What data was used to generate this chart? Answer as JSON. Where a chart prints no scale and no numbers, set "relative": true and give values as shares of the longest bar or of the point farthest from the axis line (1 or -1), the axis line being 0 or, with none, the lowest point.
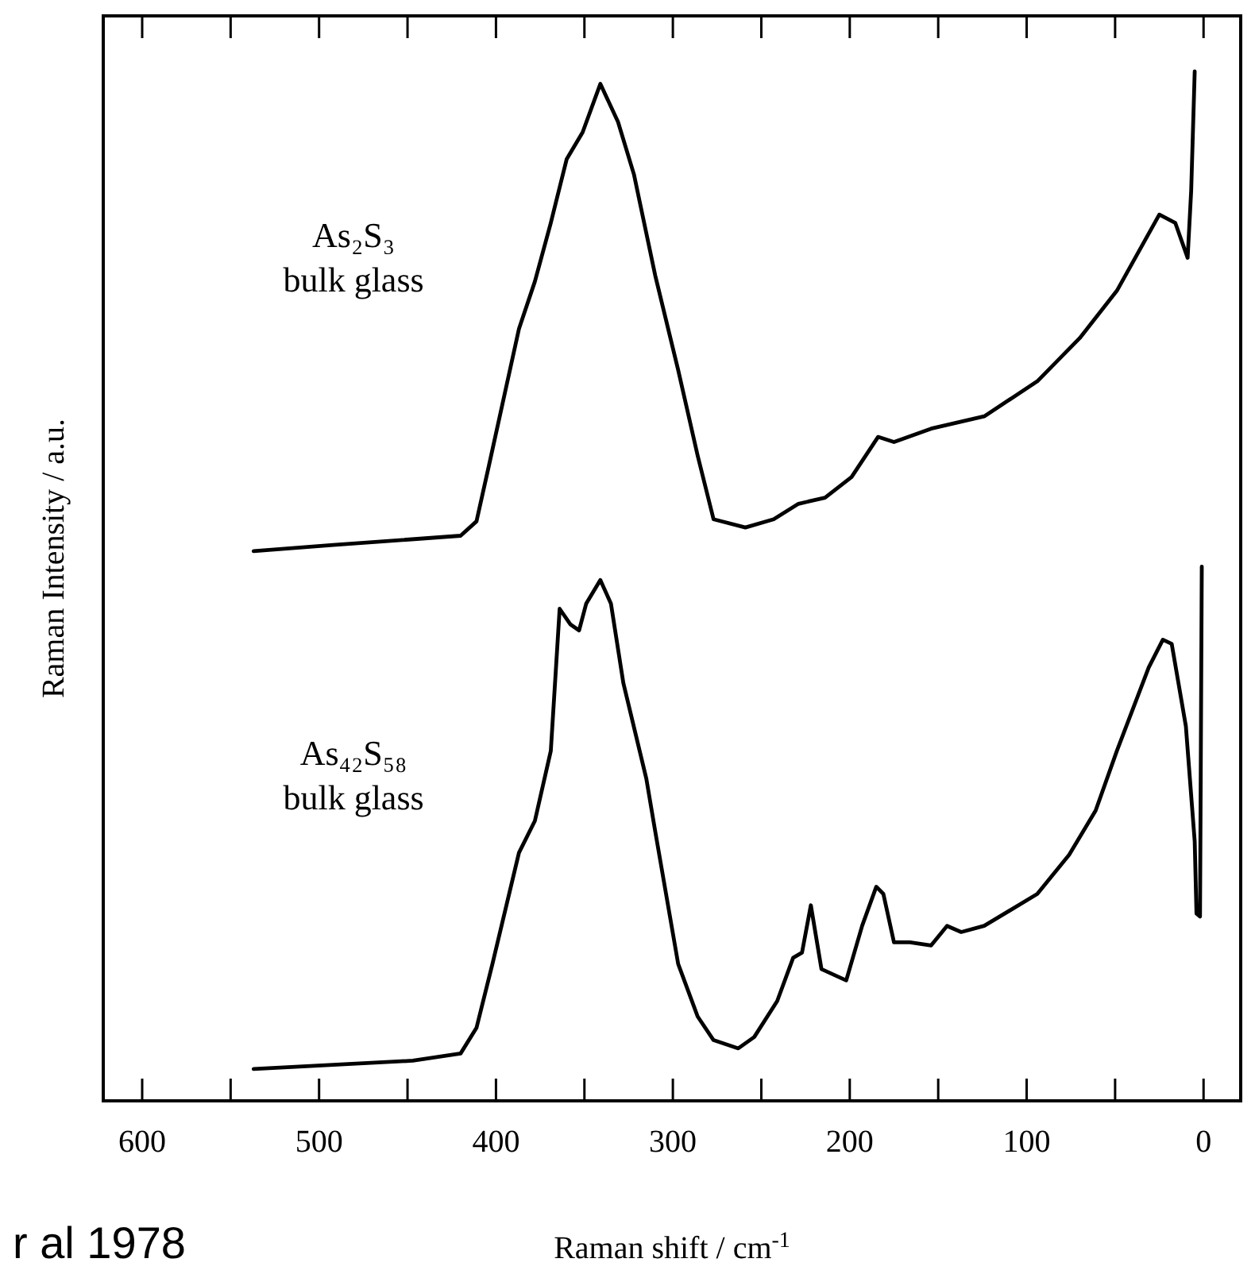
{
  "chart_data": {
    "type": "line",
    "relative": true,
    "xlabel": "Raman shift / cm$^{-1}$",
    "ylabel": "Raman Intensity / a.u.",
    "xlim": [
      622,
      -21
    ],
    "xticks": [
      600,
      {
        "value": 550,
        "label": null
      },
      500,
      {
        "value": 450,
        "label": null
      },
      400,
      {
        "value": 350,
        "label": null
      },
      300,
      {
        "value": 250,
        "label": null
      },
      200,
      {
        "value": 150,
        "label": null
      },
      100,
      {
        "value": 50,
        "label": null
      },
      0
    ],
    "legend": false,
    "grid": false,
    "marker": "none",
    "line_style": "solid",
    "annotations": [
      "r al 1978"
    ],
    "series": [
      {
        "name": "As₂S₃ bulk glass",
        "color": "#000000",
        "x": [
          537,
          492,
          420,
          411,
          404,
          387,
          378,
          369,
          360,
          351,
          341,
          331,
          322,
          310,
          297,
          286,
          277,
          259,
          243,
          229,
          214,
          199,
          184,
          175,
          154,
          124,
          94,
          70,
          49,
          25,
          16,
          9,
          7,
          5
        ],
        "values": [
          0.534,
          0.54,
          0.549,
          0.563,
          0.617,
          0.75,
          0.796,
          0.853,
          0.915,
          0.941,
          0.988,
          0.951,
          0.9,
          0.802,
          0.71,
          0.627,
          0.565,
          0.557,
          0.565,
          0.58,
          0.586,
          0.606,
          0.645,
          0.64,
          0.653,
          0.665,
          0.699,
          0.741,
          0.787,
          0.861,
          0.853,
          0.819,
          0.884,
          1.0
        ]
      },
      {
        "name": "As₄₂S₅₈ bulk glass",
        "color": "#000000",
        "x": [
          537,
          492,
          447,
          420,
          411,
          402,
          387,
          378,
          369,
          364,
          358,
          353,
          349,
          341,
          335,
          328,
          315,
          310,
          297,
          286,
          277,
          263,
          254,
          241,
          232,
          227,
          222,
          216,
          202,
          193,
          185,
          181,
          175,
          166,
          154,
          145,
          137,
          124,
          94,
          76,
          61,
          49,
          31,
          23,
          18,
          10,
          5,
          4,
          2,
          1
        ],
        "values": [
          0.031,
          0.035,
          0.039,
          0.046,
          0.071,
          0.133,
          0.241,
          0.272,
          0.34,
          0.478,
          0.463,
          0.457,
          0.483,
          0.506,
          0.483,
          0.406,
          0.313,
          0.262,
          0.133,
          0.082,
          0.059,
          0.051,
          0.062,
          0.097,
          0.139,
          0.144,
          0.19,
          0.128,
          0.117,
          0.17,
          0.208,
          0.201,
          0.154,
          0.154,
          0.151,
          0.17,
          0.164,
          0.17,
          0.201,
          0.239,
          0.282,
          0.34,
          0.421,
          0.448,
          0.444,
          0.364,
          0.252,
          0.182,
          0.179,
          0.519
        ]
      }
    ]
  }
}
